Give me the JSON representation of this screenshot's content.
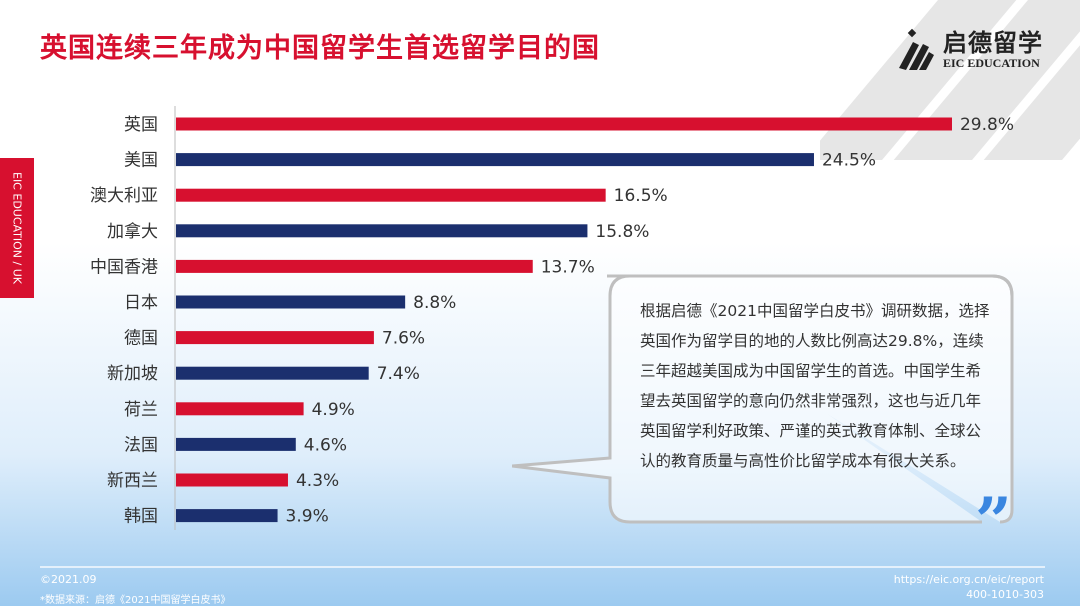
{
  "header": {
    "title": "英国连续三年成为中国留学生首选留学目的国"
  },
  "logo": {
    "cn": "启德留学",
    "en": "EIC EDUCATION"
  },
  "sidetab": {
    "label": "EIC EDUCATION / UK"
  },
  "colors": {
    "red": "#d7102f",
    "navy": "#1b2f6e"
  },
  "chart_data": {
    "type": "bar",
    "orientation": "horizontal",
    "title": "英国连续三年成为中国留学生首选留学目的国",
    "categories": [
      "英国",
      "美国",
      "澳大利亚",
      "加拿大",
      "中国香港",
      "日本",
      "德国",
      "新加坡",
      "荷兰",
      "法国",
      "新西兰",
      "韩国"
    ],
    "values": [
      29.8,
      24.5,
      16.5,
      15.8,
      13.7,
      8.8,
      7.6,
      7.4,
      4.9,
      4.6,
      4.3,
      3.9
    ],
    "labels": [
      "29.8%",
      "24.5%",
      "16.5%",
      "15.8%",
      "13.7%",
      "8.8%",
      "7.6%",
      "7.4%",
      "4.9%",
      "4.6%",
      "4.3%",
      "3.9%"
    ],
    "unit": "%",
    "xlim": [
      0,
      30
    ],
    "grid": false
  },
  "callout": {
    "text": "根据启德《2021中国留学白皮书》调研数据，选择英国作为留学目的地的人数比例高达29.8%，连续三年超越美国成为中国留学生的首选。中国学生希望去英国留学的意向仍然非常强烈，这也与近几年英国留学利好政策、严谨的英式教育体制、全球公认的教育质量与高性价比留学成本有很大关系。"
  },
  "footer": {
    "date": "©2021.09",
    "source": "*数据来源：启德《2021中国留学白皮书》",
    "url": "https://eic.org.cn/eic/report",
    "phone": "400-1010-303"
  }
}
